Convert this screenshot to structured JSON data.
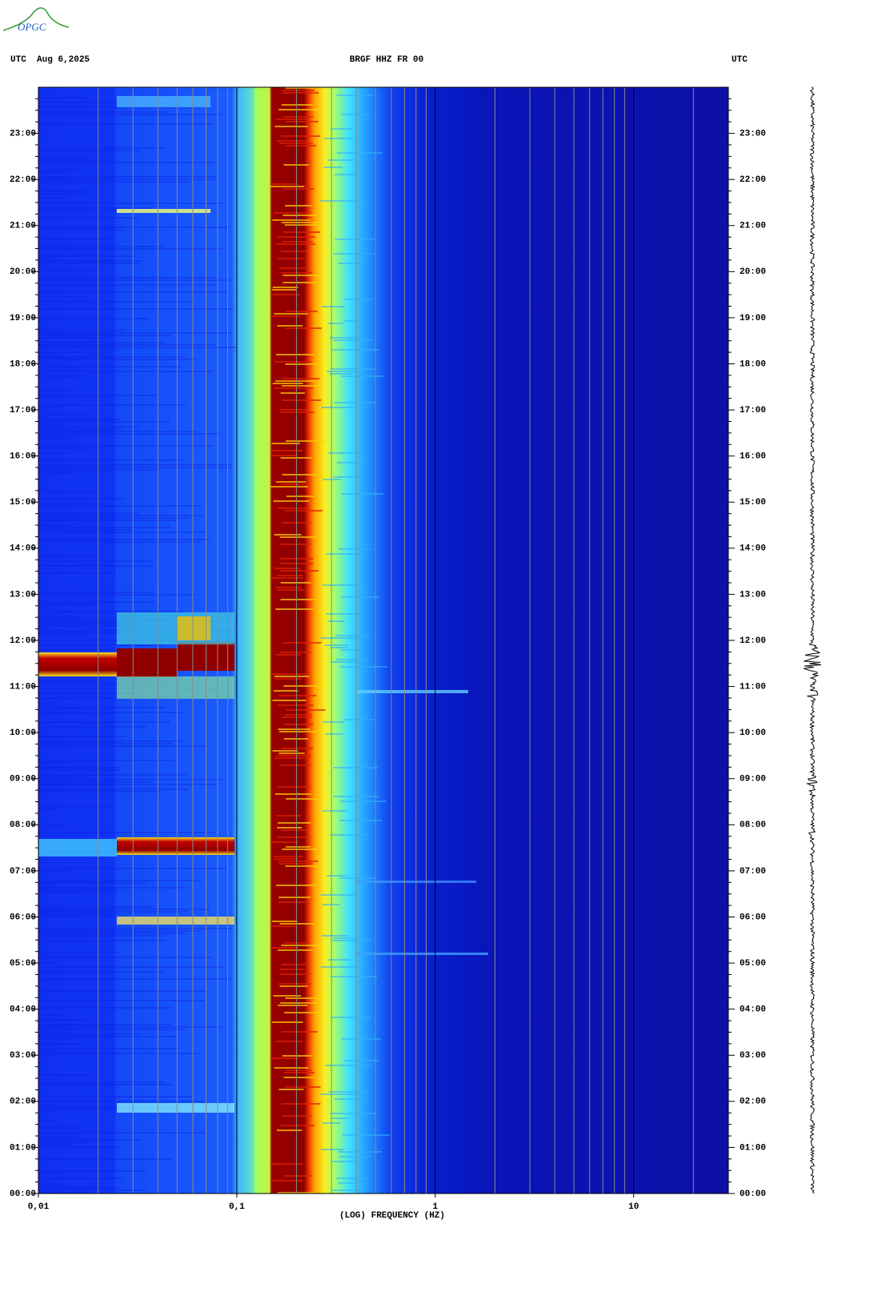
{
  "header": {
    "logo": "OPGC"
  },
  "chart_data": {
    "type": "spectrogram",
    "title": "BRGF HHZ FR 00",
    "date_label": "UTC  Aug 6,2025",
    "right_label": "UTC",
    "x_label": "(LOG) FREQUENCY (HZ)",
    "xscale": "log",
    "xlim": [
      0.01,
      30
    ],
    "xticks": [
      {
        "value": 0.01,
        "label": "0,01"
      },
      {
        "value": 0.1,
        "label": "0,1"
      },
      1,
      10
    ],
    "x_minor_ticks": [
      0.02,
      0.03,
      0.04,
      0.05,
      0.06,
      0.07,
      0.08,
      0.09,
      0.2,
      0.3,
      0.4,
      0.5,
      0.6,
      0.7,
      0.8,
      0.9,
      2,
      3,
      4,
      5,
      6,
      7,
      8,
      9,
      20
    ],
    "ylim": [
      0,
      24
    ],
    "yticks": [
      {
        "value": 0,
        "label": "00:00"
      },
      {
        "value": 1,
        "label": "01:00"
      },
      {
        "value": 2,
        "label": "02:00"
      },
      {
        "value": 3,
        "label": "03:00"
      },
      {
        "value": 4,
        "label": "04:00"
      },
      {
        "value": 5,
        "label": "05:00"
      },
      {
        "value": 6,
        "label": "06:00"
      },
      {
        "value": 7,
        "label": "07:00"
      },
      {
        "value": 8,
        "label": "08:00"
      },
      {
        "value": 9,
        "label": "09:00"
      },
      {
        "value": 10,
        "label": "10:00"
      },
      {
        "value": 11,
        "label": "11:00"
      },
      {
        "value": 12,
        "label": "12:00"
      },
      {
        "value": 13,
        "label": "13:00"
      },
      {
        "value": 14,
        "label": "14:00"
      },
      {
        "value": 15,
        "label": "15:00"
      },
      {
        "value": 16,
        "label": "16:00"
      },
      {
        "value": 17,
        "label": "17:00"
      },
      {
        "value": 18,
        "label": "18:00"
      },
      {
        "value": 19,
        "label": "19:00"
      },
      {
        "value": 20,
        "label": "20:00"
      },
      {
        "value": 21,
        "label": "21:00"
      },
      {
        "value": 22,
        "label": "22:00"
      },
      {
        "value": 23,
        "label": "23:00"
      }
    ]
  }
}
